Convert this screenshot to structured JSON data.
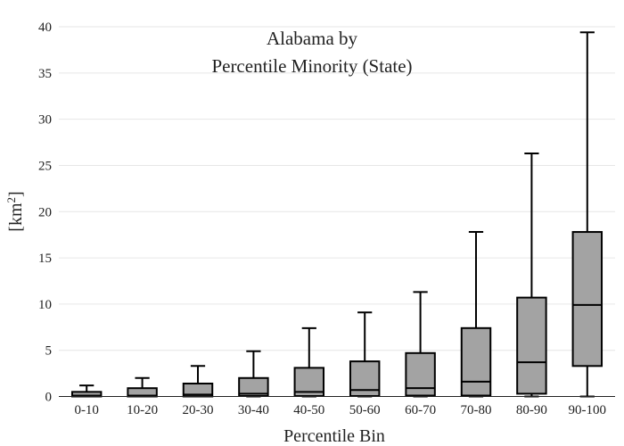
{
  "chart_data": {
    "type": "box",
    "title_lines": [
      "Alabama  by",
      "Percentile Minority (State)"
    ],
    "xlabel": "Percentile Bin",
    "ylabel_base": "[km",
    "ylabel_sup": "2",
    "ylabel_end": "]",
    "ylim": [
      0,
      40
    ],
    "yticks": [
      0,
      5,
      10,
      15,
      20,
      25,
      30,
      35,
      40
    ],
    "grid": true,
    "box_color": "#a3a3a3",
    "categories": [
      "0-10",
      "10-20",
      "20-30",
      "30-40",
      "40-50",
      "50-60",
      "60-70",
      "70-80",
      "80-90",
      "90-100"
    ],
    "boxes": [
      {
        "min": 0,
        "q1": 0.0,
        "median": 0.1,
        "q3": 0.5,
        "max": 1.2
      },
      {
        "min": 0,
        "q1": 0.0,
        "median": 0.1,
        "q3": 0.9,
        "max": 2.0
      },
      {
        "min": 0,
        "q1": 0.0,
        "median": 0.2,
        "q3": 1.4,
        "max": 3.3
      },
      {
        "min": 0,
        "q1": 0.05,
        "median": 0.3,
        "q3": 2.0,
        "max": 4.9
      },
      {
        "min": 0,
        "q1": 0.05,
        "median": 0.5,
        "q3": 3.1,
        "max": 7.4
      },
      {
        "min": 0,
        "q1": 0.05,
        "median": 0.7,
        "q3": 3.8,
        "max": 9.1
      },
      {
        "min": 0,
        "q1": 0.1,
        "median": 0.9,
        "q3": 4.7,
        "max": 11.3
      },
      {
        "min": 0,
        "q1": 0.1,
        "median": 1.6,
        "q3": 7.4,
        "max": 17.8
      },
      {
        "min": 0,
        "q1": 0.3,
        "median": 3.7,
        "q3": 10.7,
        "max": 26.3
      },
      {
        "min": 0,
        "q1": 3.3,
        "median": 9.9,
        "q3": 17.8,
        "max": 39.4
      }
    ]
  }
}
